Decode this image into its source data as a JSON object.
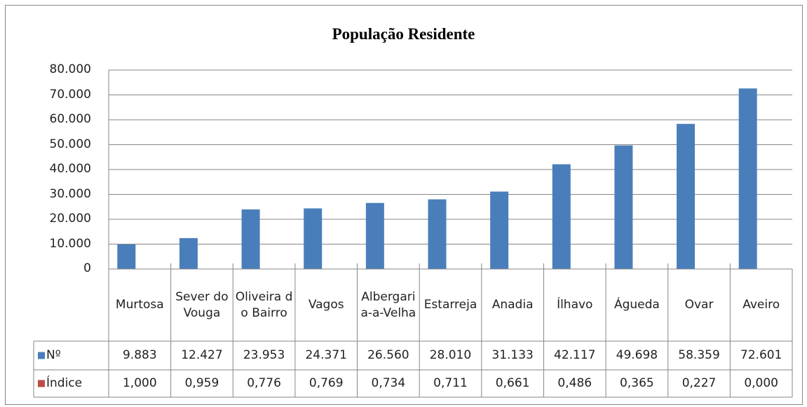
{
  "chart_data": {
    "type": "bar",
    "title": "População Residente",
    "categories": [
      "Murtosa",
      "Sever do Vouga",
      "Oliveira do Bairro",
      "Vagos",
      "Albergaria-a-Velha",
      "Estarreja",
      "Anadia",
      "Ílhavo",
      "Águeda",
      "Ovar",
      "Aveiro"
    ],
    "series": [
      {
        "name": "Nº",
        "color": "#4a7ebb",
        "values": [
          9883,
          12427,
          23953,
          24371,
          26560,
          28010,
          31133,
          42117,
          49698,
          58359,
          72601
        ],
        "value_labels": [
          "9.883",
          "12.427",
          "23.953",
          "24.371",
          "26.560",
          "28.010",
          "31.133",
          "42.117",
          "49.698",
          "58.359",
          "72.601"
        ]
      },
      {
        "name": "Índice",
        "color": "#be4b48",
        "values": [
          1.0,
          0.959,
          0.776,
          0.769,
          0.734,
          0.711,
          0.661,
          0.486,
          0.365,
          0.227,
          0.0
        ],
        "value_labels": [
          "1,000",
          "0,959",
          "0,776",
          "0,769",
          "0,734",
          "0,711",
          "0,661",
          "0,486",
          "0,365",
          "0,227",
          "0,000"
        ]
      }
    ],
    "ylim": [
      0,
      80000
    ],
    "yticks": [
      0,
      {
        "value": 10000,
        "label": "10.000"
      },
      {
        "value": 20000,
        "label": "20.000"
      },
      {
        "value": 30000,
        "label": "30.000"
      },
      {
        "value": 40000,
        "label": "40.000"
      },
      {
        "value": 50000,
        "label": "50.000"
      },
      {
        "value": 60000,
        "label": "60.000"
      },
      {
        "value": 70000,
        "label": "70.000"
      },
      {
        "value": 80000,
        "label": "80.000"
      }
    ],
    "grid": true,
    "data_table": true
  }
}
